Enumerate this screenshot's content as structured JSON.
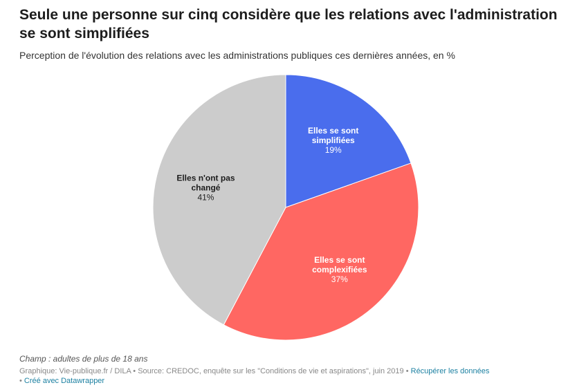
{
  "header": {
    "title": "Seule une personne sur cinq considère que les relations avec l'administration se sont simplifiées",
    "subtitle": "Perception de l'évolution des relations avec les administrations publiques ces dernières années, en %"
  },
  "chart_data": {
    "type": "pie",
    "slices": [
      {
        "label_lines": [
          "Elles se sont",
          "simplifiées"
        ],
        "value": 19,
        "value_label": "19%",
        "color": "#4a6ded",
        "text_color": "#ffffff"
      },
      {
        "label_lines": [
          "Elles se sont",
          "complexifiées"
        ],
        "value": 37,
        "value_label": "37%",
        "color": "#ff6762",
        "text_color": "#ffffff"
      },
      {
        "label_lines": [
          "Elles n'ont pas",
          "changé"
        ],
        "value": 41,
        "value_label": "41%",
        "color": "#cccccc",
        "text_color": "#1d1d1d"
      }
    ],
    "start_angle_deg": 0,
    "direction": "clockwise"
  },
  "notes": {
    "scope": "Champ : adultes de plus de 18 ans"
  },
  "footer": {
    "credit": "Graphique: Vie-publique.fr / DILA • Source: CREDOC, enquête sur les \"Conditions de vie et aspirations\", juin 2019 • ",
    "get_data_link": "Récupérer les données",
    "separator": "• ",
    "created_with_link": "Créé avec Datawrapper"
  }
}
